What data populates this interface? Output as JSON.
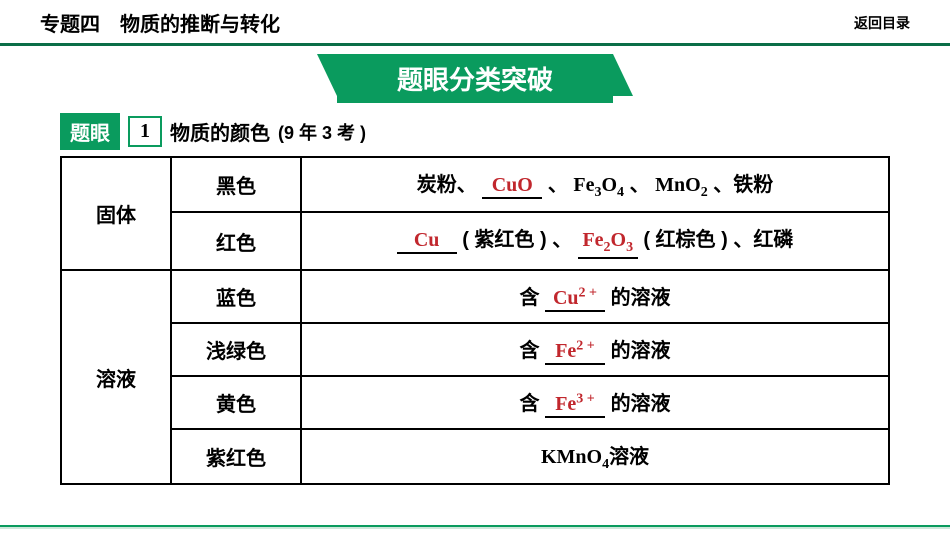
{
  "header": {
    "title": "专题四　物质的推断与转化",
    "return_link": "返回目录"
  },
  "banner": "题眼分类突破",
  "tiyan": {
    "label": "题眼",
    "number": "1",
    "title": "物质的颜色",
    "subtitle": "(9 年 3 考 )"
  },
  "table": {
    "groups": [
      {
        "category": "固体",
        "rows": [
          "黑色",
          "红色"
        ]
      },
      {
        "category": "溶液",
        "rows": [
          "蓝色",
          "浅绿色",
          "黄色",
          "紫红色"
        ]
      }
    ]
  },
  "content": {
    "r0": {
      "pre": "炭粉、",
      "blank": "CuO",
      "post1": " 、 ",
      "f1_base": "Fe",
      "f1_sub1": "3",
      "f1_mid": "O",
      "f1_sub2": "4",
      "post2": "、 ",
      "f2_base": "MnO",
      "f2_sub": "2",
      "post3": " 、铁粉"
    },
    "r1": {
      "blank1": "Cu",
      "mid1": "( 紫红色 ) 、",
      "b2_base": "Fe",
      "b2_sub1": "2",
      "b2_mid": "O",
      "b2_sub2": "3",
      "mid2": " ( 红棕色 ) 、红磷"
    },
    "rion": {
      "pre": "含 ",
      "post": " 的溶液",
      "cu_base": "Cu",
      "cu_sup": "2 +",
      "fe2_base": "Fe",
      "fe2_sup": "2 +",
      "fe3_base": "Fe",
      "fe3_sup": "3 +"
    },
    "r5": {
      "base": "KMnO",
      "sub": "4",
      "tail": "溶液"
    }
  },
  "colors": {
    "brand": "#0a9b5e",
    "brand_dark": "#0a6e47",
    "answer": "#c1272d",
    "border": "#000000",
    "bg": "#ffffff"
  }
}
